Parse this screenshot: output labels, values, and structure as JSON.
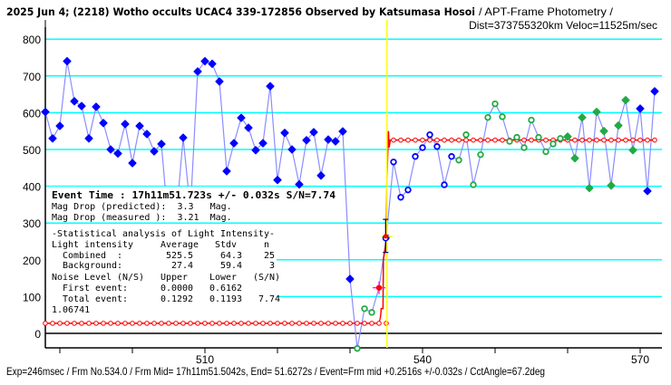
{
  "chart_data": {
    "type": "scatter",
    "title": "2025 Jun 4; (2218) Wotho occults UCAC4 339-172856 Observed by Katsumasa Hosoi",
    "subtitle": "/ APT-Frame Photometry /",
    "subtitle2": "Dist=373755320km Veloc=11525m/sec",
    "xlabel": "",
    "ylabel": "",
    "xlim": [
      485.25,
      573
    ],
    "ylim": [
      -40,
      820
    ],
    "xticks": [
      490,
      500,
      510,
      520,
      530,
      540,
      550,
      560,
      570
    ],
    "xtick_labels": [
      "510",
      "540",
      "570"
    ],
    "xtick_label_values": [
      510,
      540,
      570
    ],
    "yticks": [
      0,
      100,
      200,
      300,
      400,
      500,
      600,
      700,
      800
    ],
    "ytick_labels": [
      "0",
      "100",
      "200",
      "300",
      "400",
      "500",
      "600",
      "700",
      "800"
    ],
    "grid": true,
    "series": [
      {
        "name": "Light intensity",
        "x_start": 488,
        "values": [
          602,
          530,
          564,
          740,
          631,
          618,
          530,
          616,
          572,
          500,
          489,
          569,
          463,
          564,
          542,
          495,
          515,
          285,
          305,
          532,
          335,
          712,
          740,
          733,
          685,
          441,
          517,
          586,
          559,
          498,
          517,
          672,
          417,
          545,
          500,
          405,
          525,
          547,
          429,
          527,
          522,
          549,
          148,
          -41,
          67,
          57,
          124,
          261,
          466,
          370,
          390,
          481,
          505,
          540,
          508,
          404,
          481,
          471,
          540,
          404,
          486,
          587,
          624,
          589,
          522,
          533,
          505,
          580,
          533,
          494,
          515,
          530,
          535,
          476,
          587,
          395,
          602,
          550,
          402,
          565,
          634,
          498,
          611,
          387,
          658
        ],
        "marker_groups": [
          {
            "from": 488,
            "to": 530,
            "style": "blue-filled"
          },
          {
            "from": 531,
            "to": 533,
            "style": "green-open"
          },
          {
            "from": 534,
            "to": 534,
            "style": "red-star"
          },
          {
            "from": 535,
            "to": 544,
            "style": "blue-open"
          },
          {
            "from": 545,
            "to": 559,
            "style": "green-open"
          },
          {
            "from": 560,
            "to": 569,
            "style": "green-filled"
          },
          {
            "from": 570,
            "to": 572,
            "style": "blue-filled"
          }
        ]
      },
      {
        "name": "Model fit",
        "background_level": 27.4,
        "star_level": 525.5,
        "event_frame": 535.1,
        "overshoot": 550
      }
    ],
    "event_marker": {
      "frame": 535.1,
      "value": 264,
      "err_low": 220,
      "err_high": 310
    },
    "colors": {
      "grid": "#00ffff",
      "line": "#8c8cff",
      "blue": "#0000ff",
      "green": "#22aa44",
      "red": "#ff0000",
      "event": "#ffff00",
      "star_cross": "#ff00ff"
    }
  },
  "info": {
    "event_time": "Event Time : 17h11m51.723s  +/- 0.032s  S/N=7.74",
    "lines": [
      "Mag Drop (predicted):  3.3   Mag.",
      "Mag Drop (measured ):  3.21  Mag.",
      "-Statistical analysis of Light Intensity-",
      "Light intensity     Average   Stdv     n",
      "  Combined  :        525.5     64.3    25",
      "  Background:         27.4     59.4     3",
      "Noise Level (N/S)   Upper    Lower   (S/N)",
      "  First event:      0.0000   0.6162",
      "  Total event:      0.1292   0.1193   7.74",
      "1.06741"
    ]
  },
  "footer": "Exp=246msec / Frm No.534.0 / Frm Mid= 17h11m51.5042s,  End= 51.6272s / Event=Frm mid +0.2516s +/-0.032s / CctAngle=67.2deg"
}
